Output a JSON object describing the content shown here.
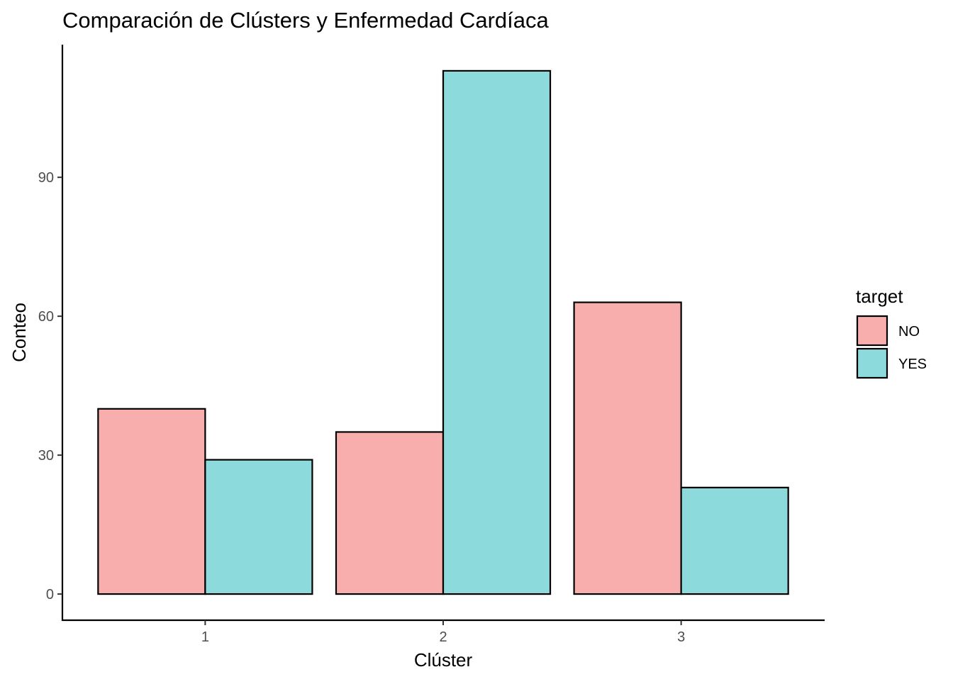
{
  "chart_data": {
    "type": "bar",
    "title": "Comparación de Clústers y Enfermedad Cardíaca",
    "xlabel": "Clúster",
    "ylabel": "Conteo",
    "categories": [
      "1",
      "2",
      "3"
    ],
    "series": [
      {
        "name": "NO",
        "values": [
          40,
          35,
          63
        ],
        "color": "#F8AEAD"
      },
      {
        "name": "YES",
        "values": [
          29,
          113,
          23
        ],
        "color": "#8CDADB"
      }
    ],
    "yticks": [
      0,
      30,
      60,
      90
    ],
    "ylim": [
      -5.65,
      118.65
    ],
    "grid": false,
    "legend": {
      "title": "target",
      "position": "right"
    }
  }
}
